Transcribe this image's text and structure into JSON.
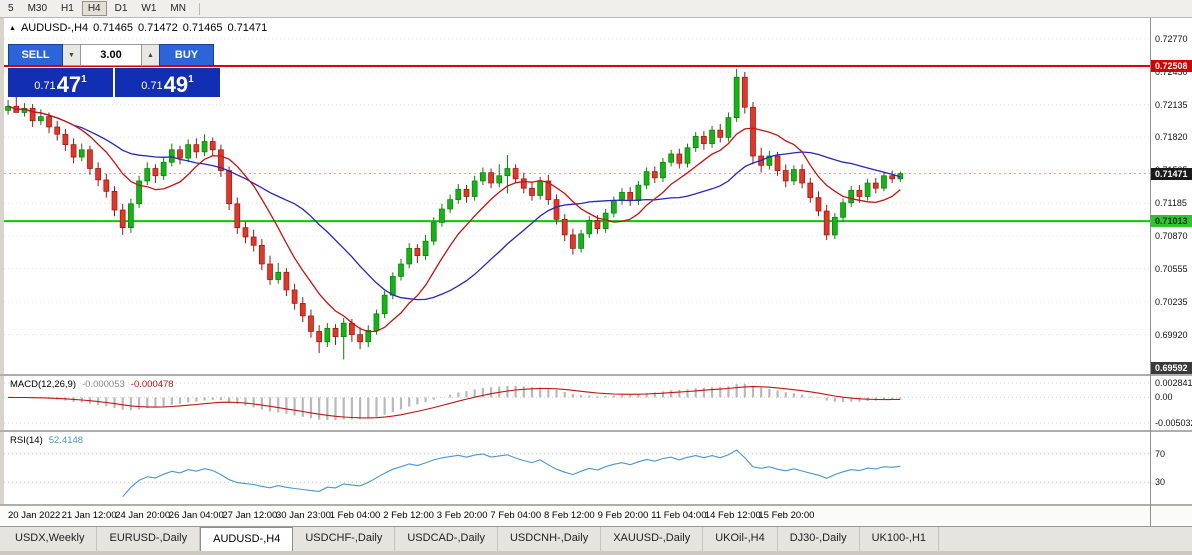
{
  "toolbar": {
    "timeframes": [
      "5",
      "M30",
      "H1",
      "H4",
      "D1",
      "W1",
      "MN"
    ],
    "active": "H4"
  },
  "icons": {
    "collapse_arrow": "▲",
    "spin_up": "▲",
    "spin_down": "▼"
  },
  "chart_header": {
    "symbol": "AUDUSD-,H4",
    "ohlc": [
      "0.71465",
      "0.71472",
      "0.71465",
      "0.71471"
    ]
  },
  "trade_panel": {
    "sell_label": "SELL",
    "buy_label": "BUY",
    "volume": "3.00",
    "sell_price": {
      "prefix": "0.71",
      "big": "47",
      "sup": "1"
    },
    "buy_price": {
      "prefix": "0.71",
      "big": "49",
      "sup": "1"
    },
    "button_color": "#2c65d9",
    "price_box_color": "#122eb2"
  },
  "price_axis": {
    "ticks": [
      "0.72770",
      "0.72450",
      "0.72135",
      "0.71820",
      "0.71505",
      "0.71185",
      "0.70870",
      "0.70555",
      "0.70235",
      "0.69920"
    ],
    "badges": [
      {
        "name": "resistance-price-badge",
        "value": "0.72508",
        "bg": "#d40000",
        "fg": "#ffffff"
      },
      {
        "name": "bid-price-badge",
        "value": "0.71471",
        "bg": "#1a1a1a",
        "fg": "#ffffff"
      },
      {
        "name": "support-price-badge",
        "value": "0.71013",
        "bg": "#2dc52d",
        "fg": "#00330a"
      },
      {
        "name": "range-low-price-badge",
        "value": "0.69592",
        "bg": "#3a3a3a",
        "fg": "#ffffff"
      }
    ]
  },
  "macd_panel": {
    "label": "MACD(12,26,9)",
    "main_value": "-0.000053",
    "signal_value": "-0.000478",
    "axis_labels": [
      "0.002841",
      "0.00",
      "-0.005032"
    ]
  },
  "rsi_panel": {
    "label": "RSI(14)",
    "value": "52.4148",
    "levels": [
      "70",
      "30"
    ]
  },
  "bottom_tabs": {
    "items": [
      "USDX,Weekly",
      "EURUSD-,Daily",
      "AUDUSD-,H4",
      "USDCHF-,Daily",
      "USDCAD-,Daily",
      "USDCNH-,Daily",
      "XAUUSD-,Daily",
      "UKOil-,H4",
      "DJ30-,Daily",
      "UK100-,H1"
    ],
    "active": "AUDUSD-,H4"
  },
  "chart_data": {
    "type": "candlestick",
    "symbol": "AUDUSD-,H4",
    "timeframe": "H4",
    "slot_count": 140,
    "ylim": [
      0.6954,
      0.7297
    ],
    "current_price": 0.71471,
    "levels": [
      {
        "label": "resistance",
        "value": 0.72508,
        "color": "#e00000"
      },
      {
        "label": "support",
        "value": 0.71013,
        "color": "#00cc00"
      }
    ],
    "colors": {
      "up": "#12b512",
      "up_border": "#0b7e0b",
      "down": "#e33528",
      "down_border": "#9e150e"
    },
    "ma_fast": {
      "period": 9,
      "color": "#c41414"
    },
    "ma_slow": {
      "period": 21,
      "color": "#2727bd"
    },
    "macd": {
      "fast": 12,
      "slow": 26,
      "signal": 9,
      "histogram_color": "#b9b9b9",
      "signal_color": "#c41414"
    },
    "rsi": {
      "period": 14,
      "color": "#4a96d2",
      "levels": [
        70,
        30
      ]
    },
    "x_labels": [
      "20 Jan 2022",
      "21 Jan 12:00",
      "24 Jan 20:00",
      "26 Jan 04:00",
      "27 Jan 12:00",
      "30 Jan 23:00",
      "1 Feb 04:00",
      "2 Feb 12:00",
      "3 Feb 20:00",
      "7 Feb 04:00",
      "8 Feb 12:00",
      "9 Feb 20:00",
      "11 Feb 04:00",
      "14 Feb 12:00",
      "15 Feb 20:00"
    ],
    "candles": [
      [
        0.7208,
        0.7218,
        0.7204,
        0.7212
      ],
      [
        0.7212,
        0.7221,
        0.7208,
        0.7206
      ],
      [
        0.7206,
        0.7215,
        0.7202,
        0.721
      ],
      [
        0.721,
        0.7214,
        0.7192,
        0.7198
      ],
      [
        0.7198,
        0.7209,
        0.7194,
        0.7202
      ],
      [
        0.7202,
        0.7206,
        0.7186,
        0.7192
      ],
      [
        0.7192,
        0.7198,
        0.7179,
        0.7185
      ],
      [
        0.7185,
        0.719,
        0.7169,
        0.7175
      ],
      [
        0.7175,
        0.7181,
        0.7157,
        0.7163
      ],
      [
        0.7163,
        0.7176,
        0.7159,
        0.717
      ],
      [
        0.717,
        0.7174,
        0.7146,
        0.7152
      ],
      [
        0.7152,
        0.7158,
        0.7135,
        0.7141
      ],
      [
        0.7141,
        0.7147,
        0.7124,
        0.713
      ],
      [
        0.713,
        0.7135,
        0.7106,
        0.7112
      ],
      [
        0.7112,
        0.7118,
        0.7088,
        0.7095
      ],
      [
        0.7095,
        0.7123,
        0.709,
        0.7118
      ],
      [
        0.7118,
        0.7145,
        0.7114,
        0.714
      ],
      [
        0.714,
        0.7158,
        0.7136,
        0.7152
      ],
      [
        0.7152,
        0.7156,
        0.7138,
        0.7145
      ],
      [
        0.7145,
        0.7163,
        0.7141,
        0.7158
      ],
      [
        0.7158,
        0.7176,
        0.7154,
        0.717
      ],
      [
        0.717,
        0.7174,
        0.7156,
        0.7162
      ],
      [
        0.7162,
        0.718,
        0.7158,
        0.7175
      ],
      [
        0.7175,
        0.7181,
        0.7162,
        0.7168
      ],
      [
        0.7168,
        0.7185,
        0.7164,
        0.7178
      ],
      [
        0.7178,
        0.7182,
        0.7164,
        0.717
      ],
      [
        0.717,
        0.7175,
        0.7144,
        0.715
      ],
      [
        0.715,
        0.7154,
        0.7112,
        0.7118
      ],
      [
        0.7118,
        0.7124,
        0.7089,
        0.7095
      ],
      [
        0.7095,
        0.7101,
        0.708,
        0.7086
      ],
      [
        0.7086,
        0.7093,
        0.7072,
        0.7078
      ],
      [
        0.7078,
        0.7084,
        0.7054,
        0.706
      ],
      [
        0.706,
        0.7068,
        0.704,
        0.7045
      ],
      [
        0.7045,
        0.7061,
        0.7041,
        0.7052
      ],
      [
        0.7052,
        0.7056,
        0.7029,
        0.7035
      ],
      [
        0.7035,
        0.7041,
        0.7016,
        0.7022
      ],
      [
        0.7022,
        0.7028,
        0.7004,
        0.701
      ],
      [
        0.701,
        0.7016,
        0.6989,
        0.6995
      ],
      [
        0.6995,
        0.7001,
        0.6974,
        0.6985
      ],
      [
        0.6985,
        0.7003,
        0.698,
        0.6998
      ],
      [
        0.6998,
        0.7002,
        0.6982,
        0.699
      ],
      [
        0.699,
        0.7008,
        0.6968,
        0.7003
      ],
      [
        0.7003,
        0.7007,
        0.6985,
        0.6992
      ],
      [
        0.6992,
        0.6999,
        0.6978,
        0.6985
      ],
      [
        0.6985,
        0.7001,
        0.698,
        0.6996
      ],
      [
        0.6996,
        0.7016,
        0.6992,
        0.7012
      ],
      [
        0.7012,
        0.7034,
        0.7008,
        0.703
      ],
      [
        0.703,
        0.7052,
        0.7026,
        0.7048
      ],
      [
        0.7048,
        0.7065,
        0.7044,
        0.706
      ],
      [
        0.706,
        0.708,
        0.7056,
        0.7075
      ],
      [
        0.7075,
        0.7079,
        0.7061,
        0.7068
      ],
      [
        0.7068,
        0.7088,
        0.7064,
        0.7082
      ],
      [
        0.7082,
        0.7105,
        0.7078,
        0.71
      ],
      [
        0.71,
        0.7118,
        0.7096,
        0.7113
      ],
      [
        0.7113,
        0.7127,
        0.7109,
        0.7122
      ],
      [
        0.7122,
        0.7137,
        0.7118,
        0.7132
      ],
      [
        0.7132,
        0.7136,
        0.7119,
        0.7125
      ],
      [
        0.7125,
        0.7145,
        0.7121,
        0.714
      ],
      [
        0.714,
        0.7153,
        0.7136,
        0.7148
      ],
      [
        0.7148,
        0.7152,
        0.7133,
        0.7138
      ],
      [
        0.7138,
        0.7156,
        0.7134,
        0.7145
      ],
      [
        0.7145,
        0.7165,
        0.7128,
        0.7152
      ],
      [
        0.7152,
        0.7156,
        0.7138,
        0.7142
      ],
      [
        0.7142,
        0.7148,
        0.7128,
        0.7133
      ],
      [
        0.7133,
        0.7139,
        0.7121,
        0.7126
      ],
      [
        0.7126,
        0.7144,
        0.7122,
        0.714
      ],
      [
        0.714,
        0.7146,
        0.7117,
        0.7122
      ],
      [
        0.7122,
        0.7127,
        0.7098,
        0.7103
      ],
      [
        0.7103,
        0.7108,
        0.7082,
        0.7088
      ],
      [
        0.7088,
        0.7094,
        0.7069,
        0.7075
      ],
      [
        0.7075,
        0.7093,
        0.7071,
        0.7089
      ],
      [
        0.7089,
        0.7106,
        0.7085,
        0.7102
      ],
      [
        0.7102,
        0.7107,
        0.7089,
        0.7094
      ],
      [
        0.7094,
        0.7113,
        0.709,
        0.7109
      ],
      [
        0.7109,
        0.7125,
        0.7105,
        0.7121
      ],
      [
        0.7121,
        0.7133,
        0.7117,
        0.7129
      ],
      [
        0.7129,
        0.7134,
        0.7116,
        0.7121
      ],
      [
        0.7121,
        0.714,
        0.7117,
        0.7136
      ],
      [
        0.7136,
        0.7153,
        0.7132,
        0.7149
      ],
      [
        0.7149,
        0.7154,
        0.7138,
        0.7143
      ],
      [
        0.7143,
        0.7162,
        0.7139,
        0.7158
      ],
      [
        0.7158,
        0.717,
        0.7154,
        0.7166
      ],
      [
        0.7166,
        0.7171,
        0.7152,
        0.7157
      ],
      [
        0.7157,
        0.7176,
        0.7153,
        0.7172
      ],
      [
        0.7172,
        0.7187,
        0.7168,
        0.7183
      ],
      [
        0.7183,
        0.7188,
        0.717,
        0.7176
      ],
      [
        0.7176,
        0.7193,
        0.7172,
        0.7189
      ],
      [
        0.7189,
        0.7195,
        0.7177,
        0.7182
      ],
      [
        0.7182,
        0.7206,
        0.7178,
        0.7201
      ],
      [
        0.7201,
        0.7248,
        0.7197,
        0.724
      ],
      [
        0.724,
        0.7245,
        0.7205,
        0.7211
      ],
      [
        0.7211,
        0.7216,
        0.7156,
        0.7164
      ],
      [
        0.7164,
        0.7172,
        0.7148,
        0.7155
      ],
      [
        0.7155,
        0.7169,
        0.7151,
        0.7164
      ],
      [
        0.7164,
        0.7168,
        0.7145,
        0.715
      ],
      [
        0.715,
        0.7156,
        0.7134,
        0.714
      ],
      [
        0.714,
        0.7155,
        0.7136,
        0.7151
      ],
      [
        0.7151,
        0.7156,
        0.7133,
        0.7138
      ],
      [
        0.7138,
        0.7143,
        0.7119,
        0.7124
      ],
      [
        0.7124,
        0.713,
        0.7106,
        0.7111
      ],
      [
        0.7111,
        0.7117,
        0.7083,
        0.7088
      ],
      [
        0.7088,
        0.7109,
        0.7084,
        0.7105
      ],
      [
        0.7105,
        0.7123,
        0.7101,
        0.7119
      ],
      [
        0.7119,
        0.7135,
        0.7115,
        0.7131
      ],
      [
        0.7131,
        0.7136,
        0.7119,
        0.7125
      ],
      [
        0.7125,
        0.7142,
        0.7121,
        0.7138
      ],
      [
        0.7138,
        0.7143,
        0.7128,
        0.7133
      ],
      [
        0.7133,
        0.7148,
        0.713,
        0.7145
      ],
      [
        0.7145,
        0.715,
        0.7138,
        0.7142
      ],
      [
        0.7142,
        0.7149,
        0.7139,
        0.71471
      ]
    ]
  }
}
